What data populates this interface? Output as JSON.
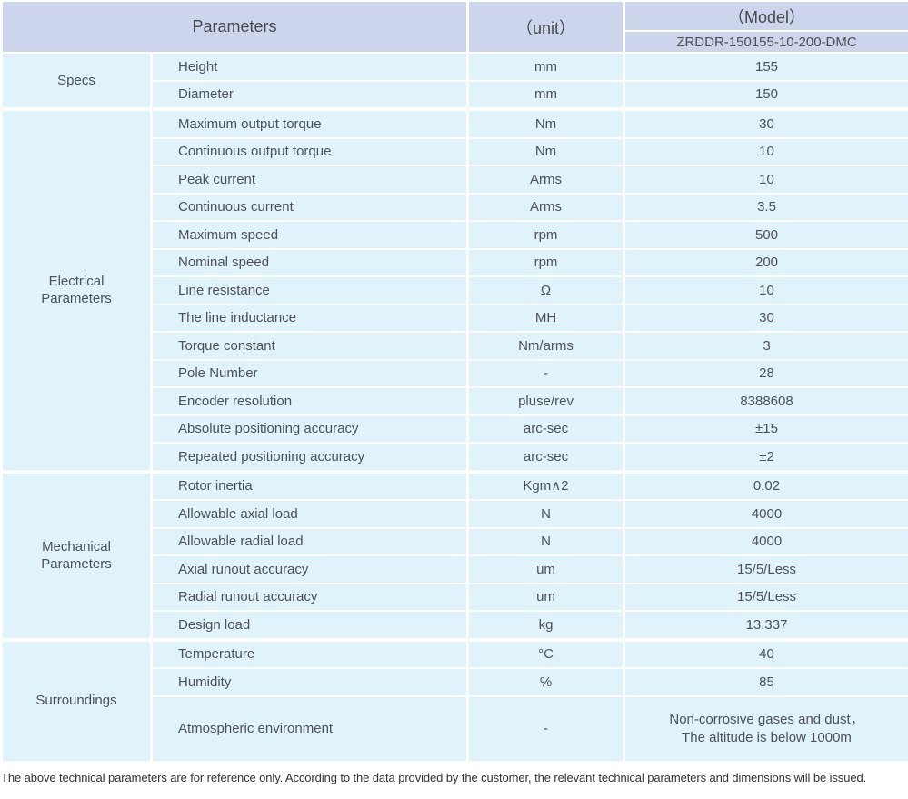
{
  "table": {
    "header": {
      "parameters": "Parameters",
      "unit": "（unit）",
      "model": "（Model）",
      "model_value": "ZRDDR-150155-10-200-DMC"
    },
    "sections": [
      {
        "group": "Specs",
        "rows": [
          {
            "param": "Height",
            "unit": "mm",
            "value": "155"
          },
          {
            "param": "Diameter",
            "unit": "mm",
            "value": "150"
          }
        ]
      },
      {
        "group": "Electrical\nParameters",
        "rows": [
          {
            "param": "Maximum output torque",
            "unit": "Nm",
            "value": "30"
          },
          {
            "param": "Continuous output torque",
            "unit": "Nm",
            "value": "10"
          },
          {
            "param": "Peak current",
            "unit": "Arms",
            "value": "10"
          },
          {
            "param": "Continuous current",
            "unit": "Arms",
            "value": "3.5"
          },
          {
            "param": "Maximum speed",
            "unit": "rpm",
            "value": "500"
          },
          {
            "param": "Nominal speed",
            "unit": "rpm",
            "value": "200"
          },
          {
            "param": "Line resistance",
            "unit": "Ω",
            "value": "10"
          },
          {
            "param": "The line inductance",
            "unit": "MH",
            "value": "30"
          },
          {
            "param": "Torque constant",
            "unit": "Nm/arms",
            "value": "3"
          },
          {
            "param": "Pole Number",
            "unit": "-",
            "value": "28"
          },
          {
            "param": "Encoder resolution",
            "unit": "pluse/rev",
            "value": "8388608"
          },
          {
            "param": "Absolute positioning accuracy",
            "unit": "arc-sec",
            "value": "±15"
          },
          {
            "param": "Repeated positioning accuracy",
            "unit": "arc-sec",
            "value": "±2"
          }
        ]
      },
      {
        "group": "Mechanical\nParameters",
        "rows": [
          {
            "param": "Rotor inertia",
            "unit": "Kgm∧2",
            "value": "0.02"
          },
          {
            "param": "Allowable axial load",
            "unit": "N",
            "value": "4000"
          },
          {
            "param": "Allowable radial load",
            "unit": "N",
            "value": "4000"
          },
          {
            "param": "Axial runout accuracy",
            "unit": "um",
            "value": "15/5/Less"
          },
          {
            "param": "Radial runout accuracy",
            "unit": "um",
            "value": "15/5/Less"
          },
          {
            "param": "Design load",
            "unit": "kg",
            "value": "13.337"
          }
        ]
      },
      {
        "group": "Surroundings",
        "rows": [
          {
            "param": "Temperature",
            "unit": "°C",
            "value": "40"
          },
          {
            "param": "Humidity",
            "unit": "%",
            "value": "85"
          },
          {
            "param": "Atmospheric environment",
            "unit": "-",
            "value": "Non-corrosive gases and dust，\nThe altitude is below 1000m"
          }
        ]
      }
    ]
  },
  "footer": {
    "note": "The above technical parameters are for reference only. According to the data provided by the customer, the relevant technical parameters and dimensions will be issued."
  },
  "colors": {
    "header_bg": "#ccd5ec",
    "row_bg": "#e0f3fb",
    "border": "#ffffff",
    "body_text": "#4d5156",
    "header_text": "#45494e"
  }
}
